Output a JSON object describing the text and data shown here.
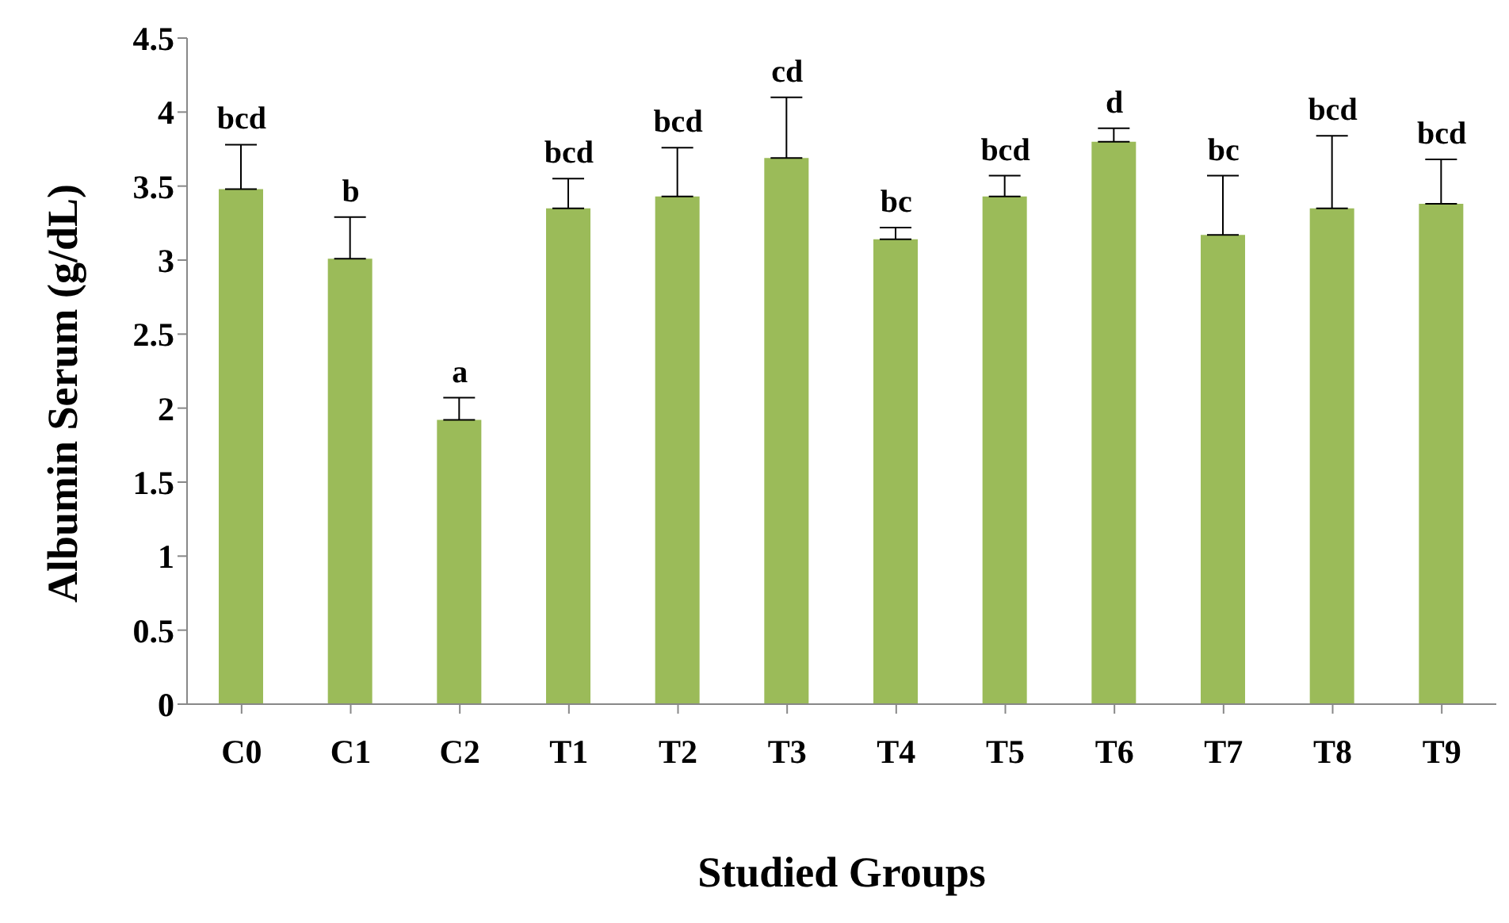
{
  "chart_data": {
    "type": "bar",
    "xlabel": "Studied Groups",
    "ylabel": "Albumin Serum (g/dL)",
    "categories": [
      "C0",
      "C1",
      "C2",
      "T1",
      "T2",
      "T3",
      "T4",
      "T5",
      "T6",
      "T7",
      "T8",
      "T9"
    ],
    "values": [
      3.48,
      3.01,
      1.92,
      3.35,
      3.43,
      3.69,
      3.14,
      3.43,
      3.8,
      3.17,
      3.35,
      3.38
    ],
    "errors": [
      [
        3.48,
        3.78
      ],
      [
        3.01,
        3.29
      ],
      [
        1.92,
        2.07
      ],
      [
        3.35,
        3.55
      ],
      [
        3.43,
        3.76
      ],
      [
        3.69,
        4.1
      ],
      [
        3.14,
        3.22
      ],
      [
        3.43,
        3.57
      ],
      [
        3.8,
        3.89
      ],
      [
        3.17,
        3.57
      ],
      [
        3.35,
        3.84
      ],
      [
        3.38,
        3.68
      ]
    ],
    "color": "#9bbb59",
    "ylim": [
      0,
      4.5
    ],
    "yticks": [
      0,
      0.5,
      1,
      1.5,
      2,
      2.5,
      3,
      3.5,
      4,
      4.5
    ],
    "grid": false,
    "legend": false,
    "annotations": [
      "bcd",
      "b",
      "a",
      "bcd",
      "bcd",
      "cd",
      "bc",
      "bcd",
      "d",
      "bc",
      "bcd",
      "bcd"
    ]
  }
}
